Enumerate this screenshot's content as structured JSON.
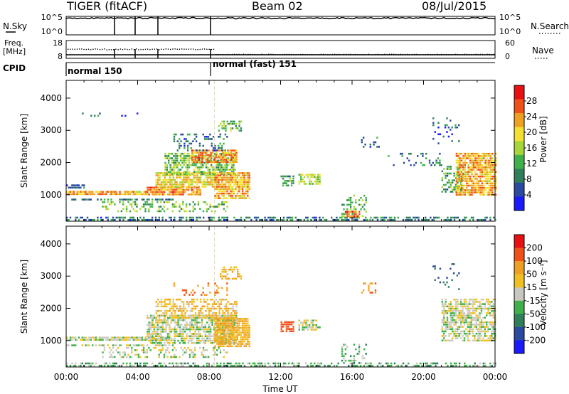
{
  "header": {
    "radar": "TIGER (fitACF)",
    "beam": "Beam 02",
    "date": "08/Jul/2015"
  },
  "panels": {
    "nsky_label": "N.Sky",
    "nsearch_label": "N.Search",
    "freq_label": "Freq.",
    "freq_unit": "[MHz]",
    "nave_label": "Nave",
    "cpid_label": "CPID",
    "count_ticks": [
      "10^5",
      "10^0"
    ],
    "freq_ticks": [
      "18",
      "8"
    ],
    "nave_ticks": [
      "60",
      "0"
    ],
    "cpid_segments": [
      {
        "start_h": 0.0,
        "label": "normal 150"
      },
      {
        "start_h": 8.3,
        "label": "normal (fast) 151"
      }
    ]
  },
  "colors": {
    "power": [
      "#1a1aff",
      "#2a4aa0",
      "#2f7f5a",
      "#3fb04a",
      "#a8d63a",
      "#f4e030",
      "#f0a020",
      "#f05018",
      "#e81010"
    ],
    "velocity": [
      "#1a1aff",
      "#2a4aa0",
      "#2f7f5a",
      "#3fb04a",
      "#c8c8c0",
      "#f0c020",
      "#f0a020",
      "#f05018",
      "#e81010"
    ]
  },
  "chart_data": [
    {
      "type": "heatmap",
      "name": "power",
      "ylabel": "Slant Range [km]",
      "xlim_hours": [
        0,
        24
      ],
      "ylim_km": [
        180,
        4550
      ],
      "yticks": [
        1000,
        2000,
        3000,
        4000
      ],
      "colorbar_label": "Power [dB]",
      "colorbar_ticks": [
        "28",
        "24",
        "20",
        "16",
        "12",
        "8",
        "4"
      ],
      "blobs": [
        {
          "t0": 0.0,
          "t1": 24.0,
          "r0": 200,
          "r1": 320,
          "v": 8,
          "density": 0.55
        },
        {
          "t0": 0.0,
          "t1": 4.5,
          "r0": 1020,
          "r1": 1120,
          "v": 22,
          "density": 0.9
        },
        {
          "t0": 0.0,
          "t1": 1.0,
          "r0": 1200,
          "r1": 1320,
          "v": 6,
          "density": 0.85
        },
        {
          "t0": 0.0,
          "t1": 6.0,
          "r0": 830,
          "r1": 880,
          "v": 8,
          "density": 0.6
        },
        {
          "t0": 4.5,
          "t1": 7.5,
          "r0": 1000,
          "r1": 1250,
          "v": 24,
          "density": 0.9
        },
        {
          "t0": 5.0,
          "t1": 8.5,
          "r0": 1250,
          "r1": 1700,
          "v": 20,
          "density": 0.8
        },
        {
          "t0": 5.5,
          "t1": 9.5,
          "r0": 1600,
          "r1": 2300,
          "v": 14,
          "density": 0.6
        },
        {
          "t0": 7.0,
          "t1": 9.5,
          "r0": 2000,
          "r1": 2400,
          "v": 24,
          "density": 0.75
        },
        {
          "t0": 8.3,
          "t1": 10.3,
          "r0": 900,
          "r1": 1700,
          "v": 22,
          "density": 0.85
        },
        {
          "t0": 6.0,
          "t1": 9.0,
          "r0": 2400,
          "r1": 2900,
          "v": 8,
          "density": 0.3
        },
        {
          "t0": 8.5,
          "t1": 9.8,
          "r0": 3000,
          "r1": 3300,
          "v": 14,
          "density": 0.5
        },
        {
          "t0": 2.0,
          "t1": 9.0,
          "r0": 500,
          "r1": 800,
          "v": 14,
          "density": 0.35
        },
        {
          "t0": 13.0,
          "t1": 14.2,
          "r0": 1350,
          "r1": 1650,
          "v": 16,
          "density": 0.7
        },
        {
          "t0": 12.0,
          "t1": 12.7,
          "r0": 1300,
          "r1": 1600,
          "v": 10,
          "density": 0.6
        },
        {
          "t0": 15.4,
          "t1": 16.8,
          "r0": 300,
          "r1": 1000,
          "v": 12,
          "density": 0.35
        },
        {
          "t0": 15.6,
          "t1": 16.4,
          "r0": 300,
          "r1": 500,
          "v": 26,
          "density": 0.9
        },
        {
          "t0": 16.5,
          "t1": 17.5,
          "r0": 2500,
          "r1": 2800,
          "v": 6,
          "density": 0.25
        },
        {
          "t0": 18.0,
          "t1": 21.0,
          "r0": 1900,
          "r1": 2300,
          "v": 8,
          "density": 0.15
        },
        {
          "t0": 21.0,
          "t1": 22.2,
          "r0": 1100,
          "r1": 1900,
          "v": 12,
          "density": 0.45
        },
        {
          "t0": 21.8,
          "t1": 24.0,
          "r0": 1000,
          "r1": 2300,
          "v": 22,
          "density": 0.85
        },
        {
          "t0": 20.5,
          "t1": 22.0,
          "r0": 2600,
          "r1": 3400,
          "v": 6,
          "density": 0.15
        },
        {
          "t0": 0.5,
          "t1": 4.0,
          "r0": 3450,
          "r1": 3550,
          "v": 6,
          "density": 0.15
        }
      ]
    },
    {
      "type": "heatmap",
      "name": "velocity",
      "xlabel": "Time UT",
      "ylabel": "Slant Range [km]",
      "xlim_hours": [
        0,
        24
      ],
      "ylim_km": [
        180,
        4550
      ],
      "xticks": [
        "00:00",
        "04:00",
        "08:00",
        "12:00",
        "16:00",
        "20:00",
        "00:00"
      ],
      "yticks": [
        1000,
        2000,
        3000,
        4000
      ],
      "colorbar_label": "Velocity [m s⁻¹]",
      "colorbar_ticks": [
        "200",
        "100",
        "50",
        "15",
        "-15",
        "-50",
        "-100",
        "-200"
      ],
      "blobs": [
        {
          "t0": 0.0,
          "t1": 24.0,
          "r0": 200,
          "r1": 320,
          "v": 30,
          "density": 0.5
        },
        {
          "t0": 0.0,
          "t1": 6.0,
          "r0": 1020,
          "r1": 1120,
          "v": 0,
          "density": 0.85
        },
        {
          "t0": 0.0,
          "t1": 6.0,
          "r0": 830,
          "r1": 880,
          "v": 0,
          "density": 0.6
        },
        {
          "t0": 4.5,
          "t1": 9.5,
          "r0": 900,
          "r1": 1800,
          "v": 0,
          "density": 0.75
        },
        {
          "t0": 5.0,
          "t1": 9.5,
          "r0": 1700,
          "r1": 2300,
          "v": -40,
          "density": 0.55
        },
        {
          "t0": 8.3,
          "t1": 10.3,
          "r0": 800,
          "r1": 1700,
          "v": -60,
          "density": 0.85
        },
        {
          "t0": 8.5,
          "t1": 9.8,
          "r0": 2900,
          "r1": 3300,
          "v": -60,
          "density": 0.4
        },
        {
          "t0": 6.0,
          "t1": 9.0,
          "r0": 2400,
          "r1": 2800,
          "v": -80,
          "density": 0.25
        },
        {
          "t0": 12.0,
          "t1": 12.7,
          "r0": 1300,
          "r1": 1600,
          "v": -150,
          "density": 0.7
        },
        {
          "t0": 13.0,
          "t1": 14.2,
          "r0": 1350,
          "r1": 1650,
          "v": 0,
          "density": 0.6
        },
        {
          "t0": 15.4,
          "t1": 16.8,
          "r0": 300,
          "r1": 900,
          "v": 30,
          "density": 0.3
        },
        {
          "t0": 16.5,
          "t1": 17.5,
          "r0": 2500,
          "r1": 2800,
          "v": -100,
          "density": 0.25
        },
        {
          "t0": 21.0,
          "t1": 24.0,
          "r0": 1000,
          "r1": 2300,
          "v": 0,
          "density": 0.7
        },
        {
          "t0": 20.5,
          "t1": 22.0,
          "r0": 2600,
          "r1": 3400,
          "v": 100,
          "density": 0.1
        },
        {
          "t0": 2.0,
          "t1": 9.0,
          "r0": 500,
          "r1": 800,
          "v": 0,
          "density": 0.3
        }
      ]
    }
  ]
}
